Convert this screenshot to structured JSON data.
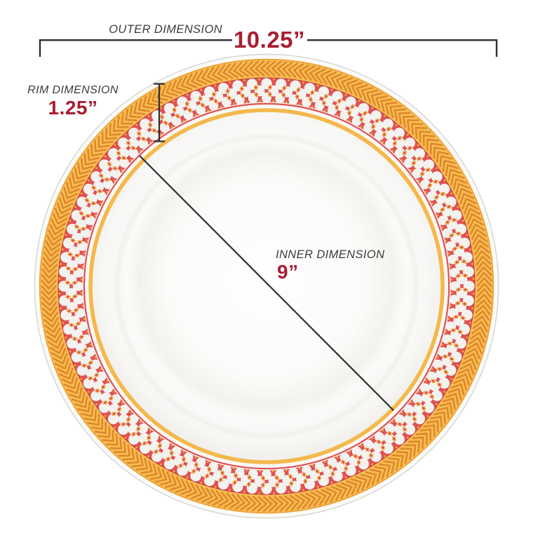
{
  "title": "Plate dimension diagram",
  "annotations": {
    "outer": {
      "label": "OUTER DIMENSION",
      "value": "10.25”"
    },
    "rim": {
      "label": "RIM DIMENSION",
      "value": "1.25”"
    },
    "inner": {
      "label": "INNER DIMENSION",
      "value": "9”"
    }
  },
  "colors": {
    "background": "#FFFFFF",
    "label_text": "#3B3B3B",
    "value_text": "#A91E32",
    "dimension_line": "#2F2F2F",
    "plate_white": "#FCFBF8",
    "plate_edge": "#D8D8D4",
    "rim_gold": "#F8BD52",
    "rim_gold_chevron": "#DE882B",
    "rim_gold_edge": "#EDA23B",
    "rim_red": "#E05152",
    "rim_red_dark": "#C94046",
    "oval_white": "#F3F2EF",
    "diamond_gold": "#F1A73E",
    "diamond_red": "#D8474C",
    "inner_gold_ring": "#F4B84C"
  }
}
